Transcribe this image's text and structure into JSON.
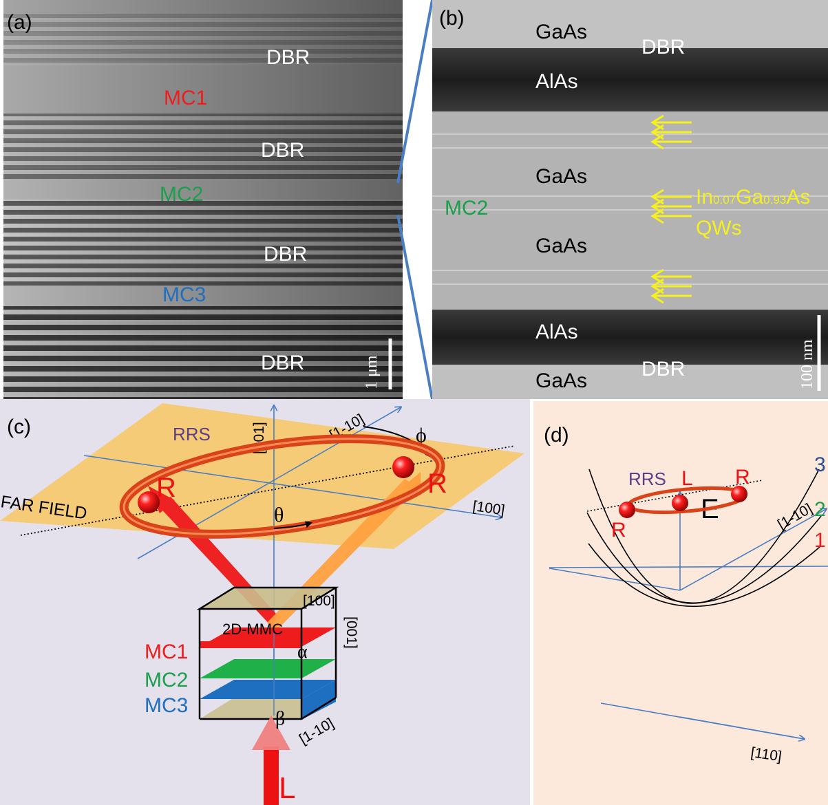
{
  "panel_a": {
    "label": "(a)",
    "layers": [
      "DBR",
      "MC1",
      "DBR",
      "MC2",
      "DBR",
      "MC3",
      "DBR"
    ],
    "scalebar": "1 μm",
    "colors": {
      "mc1": "#ee1c1c",
      "mc2": "#1aa04a",
      "mc3": "#1f6fc0",
      "label": "#ffffff"
    }
  },
  "panel_b": {
    "label": "(b)",
    "materials": [
      "GaAs",
      "AlAs",
      "GaAs",
      "GaAs",
      "AlAs",
      "GaAs"
    ],
    "dbr": [
      "DBR",
      "DBR"
    ],
    "cavity": "MC2",
    "qw_composition": {
      "p1": "In",
      "s1": "0.07",
      "p2": "Ga",
      "s2": "0.93",
      "p3": "As"
    },
    "qw_label": "QWs",
    "scalebar": "100 nm",
    "colors": {
      "arrow": "#f5f01e"
    }
  },
  "panel_c": {
    "label": "(c)",
    "axes": [
      "[001]",
      "[1-10]",
      "[100]"
    ],
    "angle_phi": "ϕ",
    "angle_theta": "θ",
    "rrs": "RRS",
    "far_field": "FAR FIELD",
    "points": [
      "R",
      "R"
    ],
    "cube_axes": [
      "[100]",
      "[001]",
      "[1-10]"
    ],
    "device": "2D-MMC",
    "cavities": [
      "MC1",
      "MC2",
      "MC3"
    ],
    "alpha": "α",
    "beta": "β",
    "input": "L",
    "colors": {
      "background": "#e4e0ec",
      "plane": "#f7c96a",
      "ring": "#e8531f"
    }
  },
  "panel_d": {
    "label": "(d)",
    "energy_axis": "E",
    "branches": [
      "3",
      "2",
      "1"
    ],
    "rrs": "RRS",
    "points": [
      "L",
      "R",
      "R"
    ],
    "axes": [
      "[1-10]",
      "[110]"
    ],
    "colors": {
      "background": "#fde9dc"
    }
  }
}
